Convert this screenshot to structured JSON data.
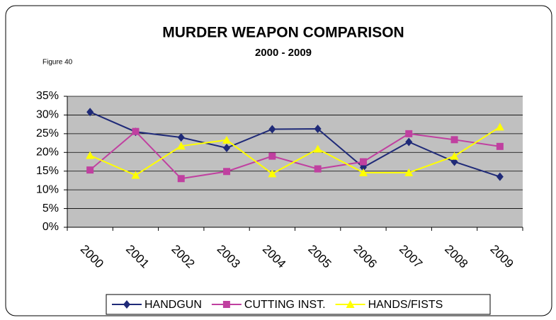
{
  "chart_data": {
    "type": "line",
    "title": "MURDER WEAPON COMPARISON",
    "subtitle": "2000 - 2009",
    "annotation": "Figure 40",
    "categories": [
      "2000",
      "2001",
      "2002",
      "2003",
      "2004",
      "2005",
      "2006",
      "2007",
      "2008",
      "2009"
    ],
    "series": [
      {
        "name": "HANDGUN",
        "color": "#1f2a78",
        "marker": "diamond",
        "values": [
          30.8,
          25.5,
          24,
          21.2,
          26.2,
          26.3,
          16,
          22.8,
          17.5,
          13.5
        ]
      },
      {
        "name": "CUTTING INST.",
        "color": "#c040a0",
        "marker": "square",
        "values": [
          15.3,
          25.6,
          13,
          14.9,
          19,
          15.6,
          17.5,
          25,
          23.4,
          21.6
        ]
      },
      {
        "name": "HANDS/FISTS",
        "color": "#ffff00",
        "marker": "triangle",
        "values": [
          19.2,
          13.9,
          21.7,
          23.3,
          14.3,
          20.9,
          14.6,
          14.6,
          19,
          26.8
        ]
      }
    ],
    "ylim": [
      0,
      35
    ],
    "yticks": [
      {
        "value": 0,
        "label": "0%"
      },
      {
        "value": 5,
        "label": "5%"
      },
      {
        "value": 10,
        "label": "10%"
      },
      {
        "value": 15,
        "label": "15%"
      },
      {
        "value": 20,
        "label": "20%"
      },
      {
        "value": 25,
        "label": "25%"
      },
      {
        "value": 30,
        "label": "30%"
      },
      {
        "value": 35,
        "label": "35%"
      }
    ],
    "grid": true,
    "legend": "bottom"
  }
}
